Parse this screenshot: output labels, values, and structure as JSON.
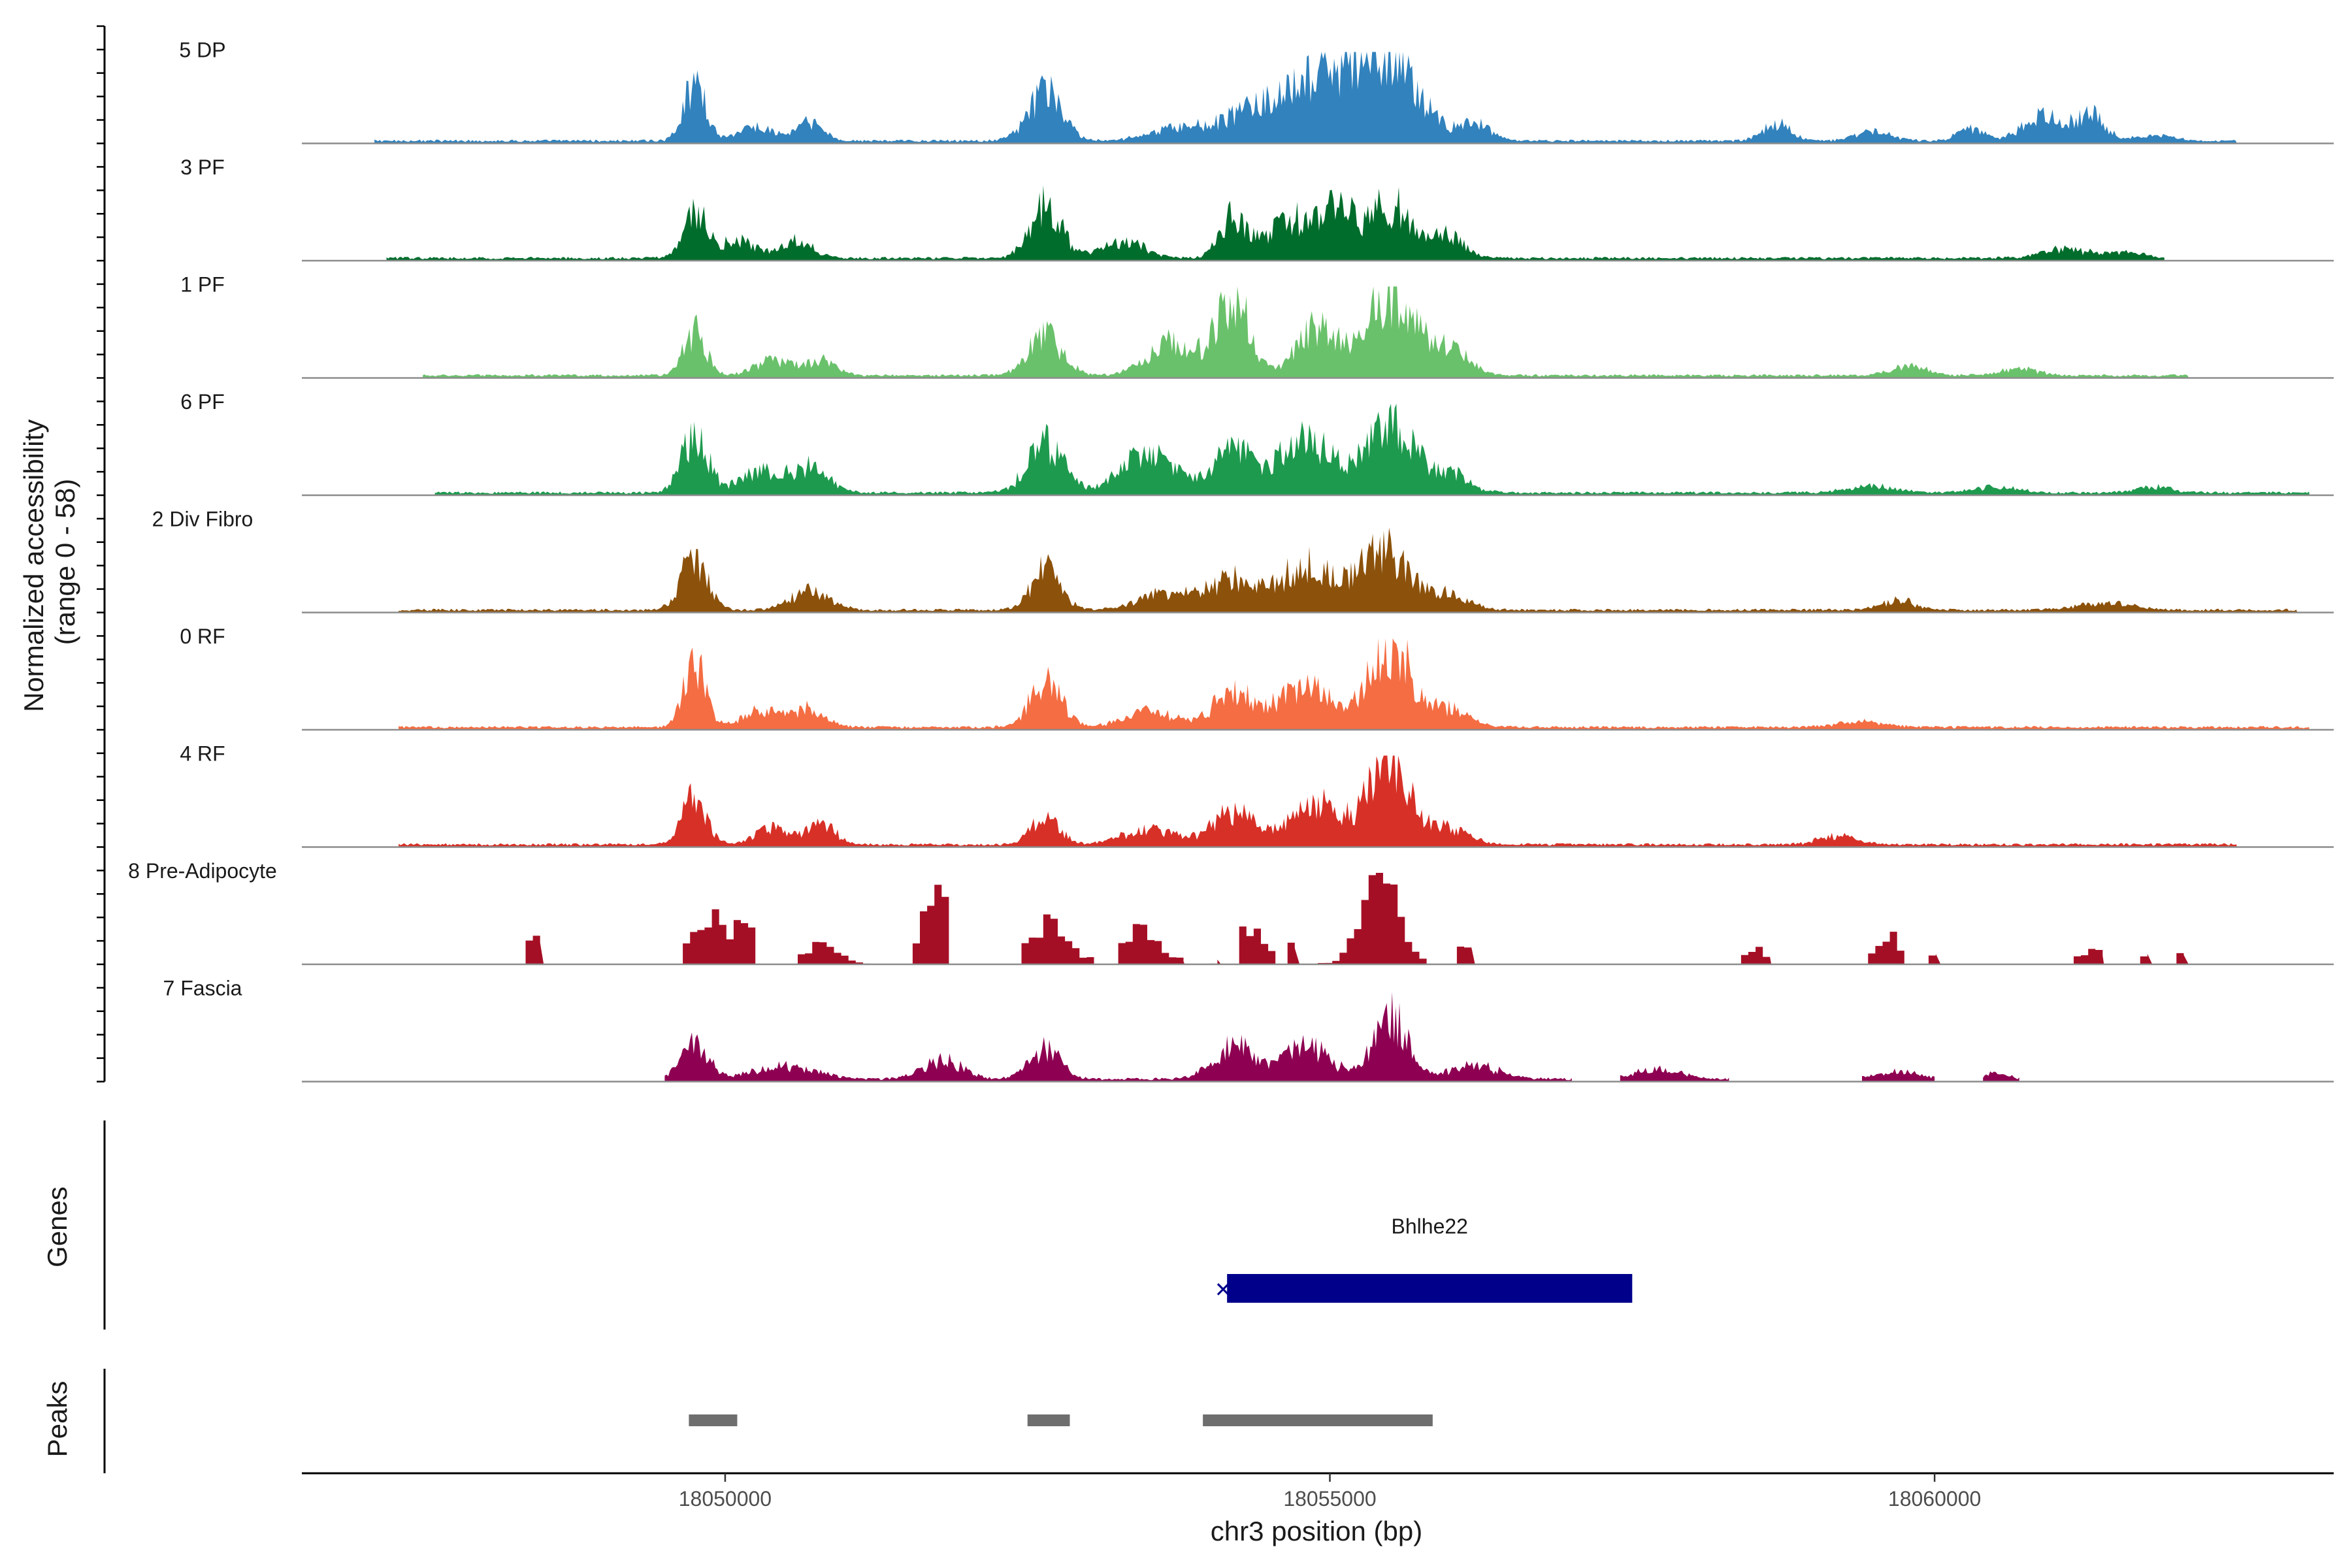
{
  "chart_data": {
    "type": "area",
    "title": "",
    "ylabel_line1": "Normalized accessibility",
    "ylabel_line2": "(range 0 - 58)",
    "y_range": [
      0,
      58
    ],
    "xlabel": "chr3 position (bp)",
    "xlim": [
      18046500,
      18063300
    ],
    "x_ticks": [
      18050000,
      18055000,
      18060000
    ],
    "x_tick_labels": [
      "18050000",
      "18055000",
      "18060000"
    ],
    "genes_label": "Genes",
    "peaks_label": "Peaks",
    "series": [
      {
        "name": "5 DP",
        "color": "#3182bd",
        "step": false,
        "segments": [
          [
            18047100,
            18062500
          ]
        ],
        "peaks": [
          [
            18049750,
            50,
            90
          ],
          [
            18050250,
            12,
            150
          ],
          [
            18050700,
            16,
            110
          ],
          [
            18052650,
            42,
            140
          ],
          [
            18053800,
            12,
            260
          ],
          [
            18054350,
            22,
            200
          ],
          [
            18054950,
            55,
            300
          ],
          [
            18055500,
            60,
            260
          ],
          [
            18056200,
            14,
            120
          ],
          [
            18058700,
            14,
            120
          ],
          [
            18059500,
            8,
            150
          ],
          [
            18060300,
            10,
            110
          ],
          [
            18060900,
            22,
            170
          ],
          [
            18061300,
            24,
            110
          ],
          [
            18061800,
            5,
            150
          ]
        ]
      },
      {
        "name": "3 PF",
        "color": "#006d2c",
        "step": false,
        "segments": [
          [
            18047200,
            18061900
          ]
        ],
        "peaks": [
          [
            18049750,
            38,
            100
          ],
          [
            18050100,
            14,
            150
          ],
          [
            18050600,
            16,
            130
          ],
          [
            18052650,
            46,
            130
          ],
          [
            18053300,
            14,
            180
          ],
          [
            18054200,
            36,
            110
          ],
          [
            18054700,
            34,
            200
          ],
          [
            18055100,
            40,
            130
          ],
          [
            18055500,
            46,
            160
          ],
          [
            18055950,
            20,
            150
          ],
          [
            18061100,
            8,
            200
          ],
          [
            18061600,
            6,
            120
          ]
        ]
      },
      {
        "name": "1 PF",
        "color": "#6ac16b",
        "step": false,
        "segments": [
          [
            18047500,
            18062100
          ]
        ],
        "peaks": [
          [
            18049750,
            40,
            90
          ],
          [
            18050400,
            14,
            150
          ],
          [
            18050800,
            12,
            120
          ],
          [
            18052650,
            35,
            140
          ],
          [
            18053700,
            30,
            200
          ],
          [
            18054200,
            68,
            130
          ],
          [
            18054900,
            42,
            170
          ],
          [
            18055500,
            72,
            200
          ],
          [
            18056000,
            22,
            150
          ],
          [
            18059800,
            8,
            150
          ],
          [
            18060700,
            6,
            150
          ]
        ]
      },
      {
        "name": "6 PF",
        "color": "#1e9a4e",
        "step": false,
        "segments": [
          [
            18047600,
            18063100
          ]
        ],
        "peaks": [
          [
            18049750,
            50,
            110
          ],
          [
            18050300,
            18,
            170
          ],
          [
            18050700,
            22,
            150
          ],
          [
            18052650,
            42,
            150
          ],
          [
            18053500,
            34,
            220
          ],
          [
            18054200,
            38,
            160
          ],
          [
            18054800,
            46,
            230
          ],
          [
            18055500,
            62,
            190
          ],
          [
            18056000,
            16,
            150
          ],
          [
            18059500,
            6,
            200
          ],
          [
            18060500,
            5,
            180
          ],
          [
            18061800,
            5,
            150
          ]
        ]
      },
      {
        "name": "2 Div Fibro",
        "color": "#8c510a",
        "step": false,
        "segments": [
          [
            18047300,
            18063000
          ]
        ],
        "peaks": [
          [
            18049750,
            46,
            110
          ],
          [
            18050700,
            16,
            160
          ],
          [
            18052650,
            35,
            120
          ],
          [
            18053700,
            16,
            250
          ],
          [
            18054200,
            24,
            170
          ],
          [
            18054800,
            40,
            220
          ],
          [
            18055450,
            52,
            200
          ],
          [
            18056000,
            14,
            150
          ],
          [
            18059700,
            8,
            150
          ],
          [
            18061400,
            6,
            220
          ]
        ]
      },
      {
        "name": "0 RF",
        "color": "#f46d43",
        "step": false,
        "segments": [
          [
            18047300,
            18063100
          ]
        ],
        "peaks": [
          [
            18049750,
            54,
            90
          ],
          [
            18050300,
            14,
            160
          ],
          [
            18050700,
            16,
            130
          ],
          [
            18052650,
            42,
            130
          ],
          [
            18053500,
            14,
            200
          ],
          [
            18054200,
            30,
            170
          ],
          [
            18054800,
            34,
            220
          ],
          [
            18055500,
            74,
            170
          ],
          [
            18056000,
            16,
            160
          ],
          [
            18059400,
            5,
            200
          ]
        ]
      },
      {
        "name": "4 RF",
        "color": "#d73027",
        "step": false,
        "segments": [
          [
            18047300,
            18062500
          ]
        ],
        "peaks": [
          [
            18049750,
            42,
            100
          ],
          [
            18050400,
            14,
            150
          ],
          [
            18050800,
            18,
            110
          ],
          [
            18052650,
            26,
            110
          ],
          [
            18053500,
            14,
            200
          ],
          [
            18054200,
            28,
            180
          ],
          [
            18054900,
            34,
            220
          ],
          [
            18055500,
            75,
            170
          ],
          [
            18056000,
            14,
            150
          ],
          [
            18059200,
            8,
            150
          ]
        ]
      },
      {
        "name": "8 Pre-Adipocyte",
        "color": "#a50f25",
        "step": true,
        "segments": [
          [
            18048350,
            18048500
          ],
          [
            18049650,
            18050250
          ],
          [
            18050600,
            18051300
          ],
          [
            18051550,
            18051850
          ],
          [
            18052450,
            18053050
          ],
          [
            18053250,
            18053800
          ],
          [
            18053950,
            18054100
          ],
          [
            18054250,
            18054550
          ],
          [
            18054650,
            18054750
          ],
          [
            18054900,
            18055800
          ],
          [
            18056050,
            18056200
          ],
          [
            18058400,
            18058650
          ],
          [
            18059450,
            18059750
          ],
          [
            18059950,
            18060050
          ],
          [
            18061150,
            18061400
          ],
          [
            18061700,
            18061800
          ],
          [
            18062000,
            18062100
          ]
        ],
        "peaks": [
          [
            18048420,
            24,
            80
          ],
          [
            18049800,
            46,
            100
          ],
          [
            18050100,
            36,
            120
          ],
          [
            18050750,
            16,
            150
          ],
          [
            18051700,
            68,
            100
          ],
          [
            18052650,
            34,
            160
          ],
          [
            18053400,
            32,
            170
          ],
          [
            18054300,
            28,
            110
          ],
          [
            18054650,
            20,
            100
          ],
          [
            18055400,
            80,
            150
          ],
          [
            18056100,
            20,
            80
          ],
          [
            18058500,
            12,
            120
          ],
          [
            18059600,
            24,
            100
          ],
          [
            18060000,
            12,
            60
          ],
          [
            18061250,
            12,
            120
          ],
          [
            18061750,
            12,
            60
          ],
          [
            18062050,
            12,
            60
          ]
        ]
      },
      {
        "name": "7 Fascia",
        "color": "#8e0152",
        "step": false,
        "segments": [
          [
            18049500,
            18057000
          ],
          [
            18057400,
            18058300
          ],
          [
            18059400,
            18060000
          ],
          [
            18060400,
            18060700
          ]
        ],
        "peaks": [
          [
            18049750,
            30,
            110
          ],
          [
            18050500,
            12,
            250
          ],
          [
            18051800,
            16,
            160
          ],
          [
            18052650,
            26,
            130
          ],
          [
            18054200,
            30,
            160
          ],
          [
            18054800,
            28,
            200
          ],
          [
            18055500,
            54,
            140
          ],
          [
            18056200,
            12,
            200
          ],
          [
            18057700,
            8,
            200
          ],
          [
            18059700,
            6,
            200
          ],
          [
            18060500,
            5,
            100
          ]
        ]
      }
    ],
    "genes": [
      {
        "name": "Bhlhe22",
        "start": 18054150,
        "end": 18057500,
        "strand_glyph": "✕",
        "color": "#00008b"
      }
    ],
    "peak_regions": [
      [
        18049700,
        18050100
      ],
      [
        18052500,
        18052850
      ],
      [
        18053950,
        18055850
      ]
    ]
  }
}
